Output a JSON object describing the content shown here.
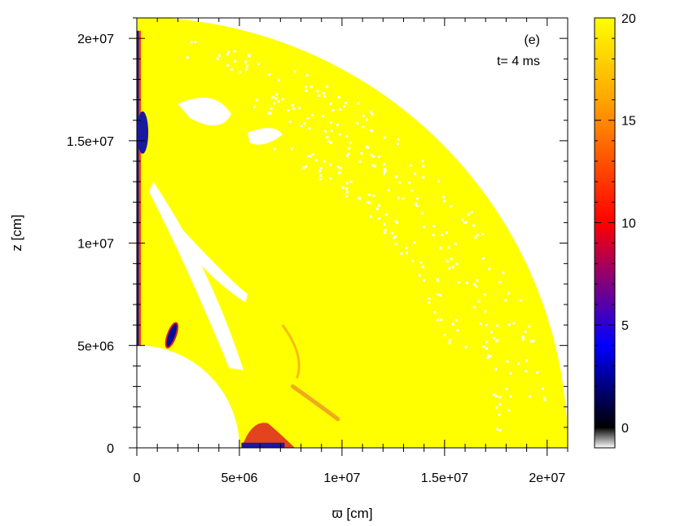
{
  "chart_data": {
    "type": "heatmap",
    "title": "",
    "xlabel": "ϖ [cm]",
    "ylabel": "z [cm]",
    "xlim": [
      0,
      21000000
    ],
    "ylim": [
      0,
      21000000
    ],
    "x_ticks": [
      {
        "value": 0,
        "label": "0"
      },
      {
        "value": 5000000,
        "label": "5e+06"
      },
      {
        "value": 10000000,
        "label": "1e+07"
      },
      {
        "value": 15000000,
        "label": "1.5e+07"
      },
      {
        "value": 20000000,
        "label": "2e+07"
      }
    ],
    "y_ticks": [
      {
        "value": 0,
        "label": "0"
      },
      {
        "value": 5000000,
        "label": "5e+06"
      },
      {
        "value": 10000000,
        "label": "1e+07"
      },
      {
        "value": 15000000,
        "label": "1.5e+07"
      },
      {
        "value": 20000000,
        "label": "2e+07"
      }
    ],
    "annotations": [
      "(e)",
      "t= 4 ms"
    ],
    "outer_radius": 21000000,
    "inner_radius": 5000000,
    "colorbar": {
      "min": -1,
      "max": 20,
      "ticks": [
        {
          "value": 0,
          "label": "0"
        },
        {
          "value": 5,
          "label": "5"
        },
        {
          "value": 10,
          "label": "10"
        },
        {
          "value": 15,
          "label": "15"
        },
        {
          "value": 20,
          "label": "20"
        }
      ],
      "stops": [
        {
          "value": -1,
          "color": "#ffffff"
        },
        {
          "value": 0,
          "color": "#000000"
        },
        {
          "value": 4,
          "color": "#0000ff"
        },
        {
          "value": 10,
          "color": "#ff0000"
        },
        {
          "value": 16,
          "color": "#ffa500"
        },
        {
          "value": 20,
          "color": "#ffff00"
        }
      ]
    },
    "field": {
      "background_value": 20,
      "features": [
        {
          "kind": "polar_edge_strip",
          "color": "#ff2200"
        },
        {
          "kind": "polar_blue_blob",
          "x": 200000,
          "y": 15400000,
          "color": "#1a1aa0"
        },
        {
          "kind": "blue_blob",
          "x": 1700000,
          "y": 5500000,
          "color": "#0a0a9a"
        },
        {
          "kind": "inner_edge_band",
          "x": 5500000,
          "y": 500000,
          "color": "#e03020"
        },
        {
          "kind": "orange_streak",
          "x": 9000000,
          "y": 2800000,
          "color": "#f0a020"
        }
      ]
    },
    "colors": {
      "high": "#ffff00",
      "empty": "#ffffff"
    }
  }
}
